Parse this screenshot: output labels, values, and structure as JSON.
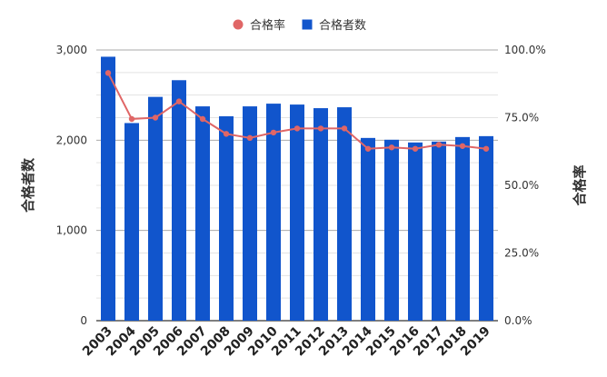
{
  "chart_data": {
    "type": "bar",
    "categories": [
      "2003",
      "2004",
      "2005",
      "2006",
      "2007",
      "2008",
      "2009",
      "2010",
      "2011",
      "2012",
      "2013",
      "2014",
      "2015",
      "2016",
      "2017",
      "2018",
      "2019"
    ],
    "series": [
      {
        "name": "合格者数",
        "type": "bar",
        "axis": "left",
        "color": "#1155cc",
        "values": [
          2925,
          2190,
          2480,
          2665,
          2375,
          2265,
          2375,
          2405,
          2395,
          2355,
          2365,
          2025,
          2005,
          1975,
          1985,
          2035,
          2045
        ]
      },
      {
        "name": "合格率",
        "type": "line",
        "axis": "right",
        "color": "#e06666",
        "values": [
          0.915,
          0.745,
          0.75,
          0.81,
          0.745,
          0.69,
          0.675,
          0.695,
          0.71,
          0.71,
          0.71,
          0.635,
          0.64,
          0.635,
          0.65,
          0.645,
          0.635
        ]
      }
    ],
    "ylabel_left": "合格者数",
    "ylabel_right": "合格率",
    "ylim_left": [
      0,
      3000
    ],
    "ylim_right": [
      0,
      1
    ],
    "left_ticks": [
      "0",
      "1,000",
      "2,000",
      "3,000"
    ],
    "right_ticks": [
      "0.0%",
      "25.0%",
      "50.0%",
      "75.0%",
      "100.0%"
    ],
    "legend_position": "top",
    "grid": true
  }
}
